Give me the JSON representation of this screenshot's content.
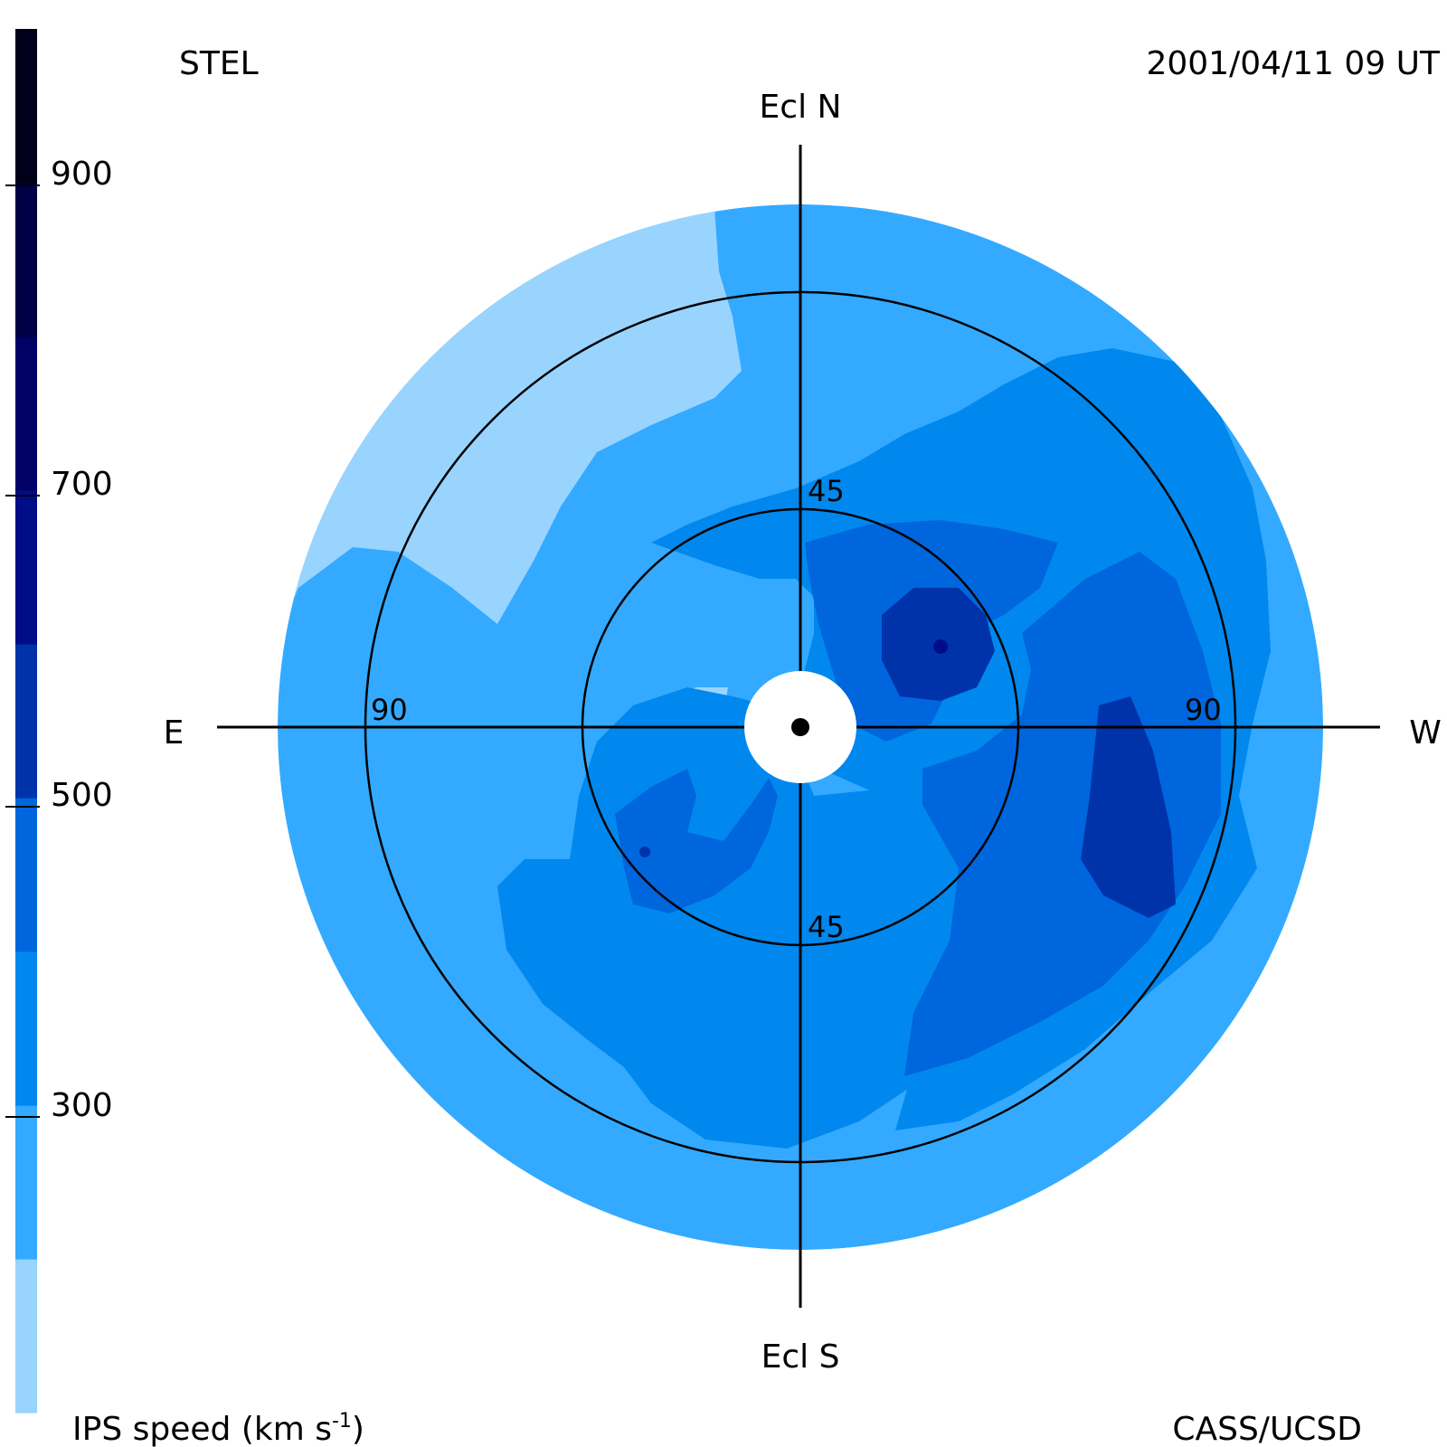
{
  "header": {
    "left": "STEL",
    "right": "2001/04/11 09 UT"
  },
  "footer": {
    "left_prefix": "IPS speed (km s",
    "left_sup": "-1",
    "left_suffix": ")",
    "right": "CASS/UCSD"
  },
  "axes": {
    "north": "Ecl N",
    "south": "Ecl S",
    "east": "E",
    "west": "W",
    "ring_inner_top": "45",
    "ring_inner_bottom": "45",
    "ring_outer_left": "90",
    "ring_outer_right": "90"
  },
  "colorbar": {
    "ticks": [
      "900",
      "700",
      "500",
      "300"
    ],
    "colors": [
      "#99d4ff",
      "#33aaff",
      "#0088ee",
      "#0066dd",
      "#0033aa",
      "#000d88",
      "#000066",
      "#000044",
      "#00001a"
    ]
  },
  "chart_data": {
    "type": "heatmap",
    "projection": "polar sky map (elongation from Sun)",
    "title": "STEL",
    "timestamp": "2001/04/11 09 UT",
    "colorbar_label": "IPS speed (km s-1)",
    "colorbar_ticks": [
      300,
      500,
      700,
      900
    ],
    "colorbar_levels_kms": [
      200,
      300,
      400,
      500,
      600,
      700,
      800,
      900,
      1000
    ],
    "elongation_rings_deg": [
      45,
      90
    ],
    "direction_labels": {
      "top": "Ecl N",
      "bottom": "Ecl S",
      "left": "E",
      "right": "W"
    },
    "regions": [
      {
        "speed_kms": 300,
        "description": "background speed over most of the map"
      },
      {
        "speed_kms": 250,
        "description": "slowest wind, northeast outer region"
      },
      {
        "speed_kms": 250,
        "description": "small slow patch east of the Sun"
      },
      {
        "speed_kms": 400,
        "description": "north-west band and southern band"
      },
      {
        "speed_kms": 500,
        "description": "west and south-west streams"
      },
      {
        "speed_kms": 550,
        "description": "fast cores north-west and west"
      }
    ]
  }
}
